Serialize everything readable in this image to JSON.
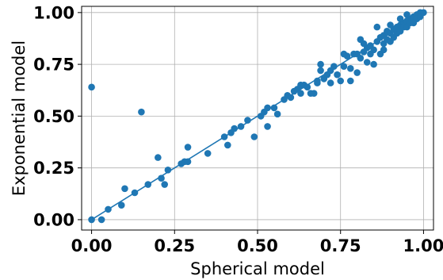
{
  "chart_data": {
    "type": "scatter",
    "title": "",
    "xlabel": "Spherical model",
    "ylabel": "Exponential model",
    "xlim": [
      -0.03,
      1.03
    ],
    "ylim": [
      -0.05,
      1.03
    ],
    "xticks": [
      "0.00",
      "0.25",
      "0.50",
      "0.75",
      "1.00"
    ],
    "yticks": [
      "0.00",
      "0.25",
      "0.50",
      "0.75",
      "1.00"
    ],
    "grid": true,
    "colors": {
      "points": "#1f77b4",
      "fit_line": "#1f77b4",
      "grid": "#b0b0b0"
    },
    "fit_line": {
      "x": [
        0.0,
        1.0
      ],
      "y": [
        0.0,
        1.0
      ]
    },
    "series": [
      {
        "points": [
          [
            0.0,
            0.0
          ],
          [
            0.0,
            0.64
          ],
          [
            0.03,
            0.0
          ],
          [
            0.05,
            0.05
          ],
          [
            0.09,
            0.07
          ],
          [
            0.1,
            0.15
          ],
          [
            0.13,
            0.13
          ],
          [
            0.15,
            0.52
          ],
          [
            0.17,
            0.17
          ],
          [
            0.2,
            0.3
          ],
          [
            0.21,
            0.2
          ],
          [
            0.22,
            0.17
          ],
          [
            0.23,
            0.24
          ],
          [
            0.27,
            0.27
          ],
          [
            0.28,
            0.28
          ],
          [
            0.29,
            0.35
          ],
          [
            0.29,
            0.28
          ],
          [
            0.35,
            0.32
          ],
          [
            0.4,
            0.4
          ],
          [
            0.41,
            0.36
          ],
          [
            0.42,
            0.42
          ],
          [
            0.43,
            0.44
          ],
          [
            0.45,
            0.45
          ],
          [
            0.47,
            0.48
          ],
          [
            0.49,
            0.4
          ],
          [
            0.51,
            0.5
          ],
          [
            0.52,
            0.52
          ],
          [
            0.53,
            0.45
          ],
          [
            0.53,
            0.54
          ],
          [
            0.55,
            0.54
          ],
          [
            0.56,
            0.51
          ],
          [
            0.58,
            0.58
          ],
          [
            0.59,
            0.6
          ],
          [
            0.6,
            0.59
          ],
          [
            0.61,
            0.62
          ],
          [
            0.62,
            0.63
          ],
          [
            0.63,
            0.65
          ],
          [
            0.63,
            0.61
          ],
          [
            0.64,
            0.65
          ],
          [
            0.65,
            0.64
          ],
          [
            0.66,
            0.61
          ],
          [
            0.67,
            0.61
          ],
          [
            0.68,
            0.66
          ],
          [
            0.68,
            0.67
          ],
          [
            0.69,
            0.72
          ],
          [
            0.69,
            0.75
          ],
          [
            0.7,
            0.68
          ],
          [
            0.71,
            0.7
          ],
          [
            0.72,
            0.72
          ],
          [
            0.73,
            0.74
          ],
          [
            0.74,
            0.7
          ],
          [
            0.75,
            0.67
          ],
          [
            0.76,
            0.74
          ],
          [
            0.77,
            0.79
          ],
          [
            0.78,
            0.67
          ],
          [
            0.78,
            0.73
          ],
          [
            0.79,
            0.8
          ],
          [
            0.8,
            0.8
          ],
          [
            0.81,
            0.78
          ],
          [
            0.81,
            0.87
          ],
          [
            0.82,
            0.81
          ],
          [
            0.83,
            0.76
          ],
          [
            0.83,
            0.83
          ],
          [
            0.84,
            0.84
          ],
          [
            0.85,
            0.75
          ],
          [
            0.85,
            0.82
          ],
          [
            0.86,
            0.86
          ],
          [
            0.87,
            0.8
          ],
          [
            0.87,
            0.88
          ],
          [
            0.88,
            0.85
          ],
          [
            0.88,
            0.89
          ],
          [
            0.89,
            0.87
          ],
          [
            0.89,
            0.91
          ],
          [
            0.9,
            0.9
          ],
          [
            0.9,
            0.86
          ],
          [
            0.91,
            0.92
          ],
          [
            0.91,
            0.88
          ],
          [
            0.92,
            0.93
          ],
          [
            0.92,
            0.9
          ],
          [
            0.93,
            0.94
          ],
          [
            0.93,
            0.91
          ],
          [
            0.94,
            0.95
          ],
          [
            0.94,
            0.93
          ],
          [
            0.95,
            0.96
          ],
          [
            0.95,
            0.93
          ],
          [
            0.96,
            0.97
          ],
          [
            0.96,
            0.95
          ],
          [
            0.97,
            0.97
          ],
          [
            0.97,
            0.98
          ],
          [
            0.98,
            0.99
          ],
          [
            0.98,
            0.97
          ],
          [
            0.99,
            1.0
          ],
          [
            0.99,
            0.98
          ],
          [
            1.0,
            1.0
          ],
          [
            0.86,
            0.93
          ],
          [
            0.84,
            0.8
          ],
          [
            0.8,
            0.71
          ],
          [
            0.82,
            0.85
          ],
          [
            0.76,
            0.8
          ],
          [
            0.72,
            0.66
          ],
          [
            0.9,
            0.94
          ],
          [
            0.93,
            0.97
          ],
          [
            0.95,
            0.99
          ],
          [
            0.97,
            0.95
          ],
          [
            0.88,
            0.82
          ]
        ]
      }
    ]
  }
}
